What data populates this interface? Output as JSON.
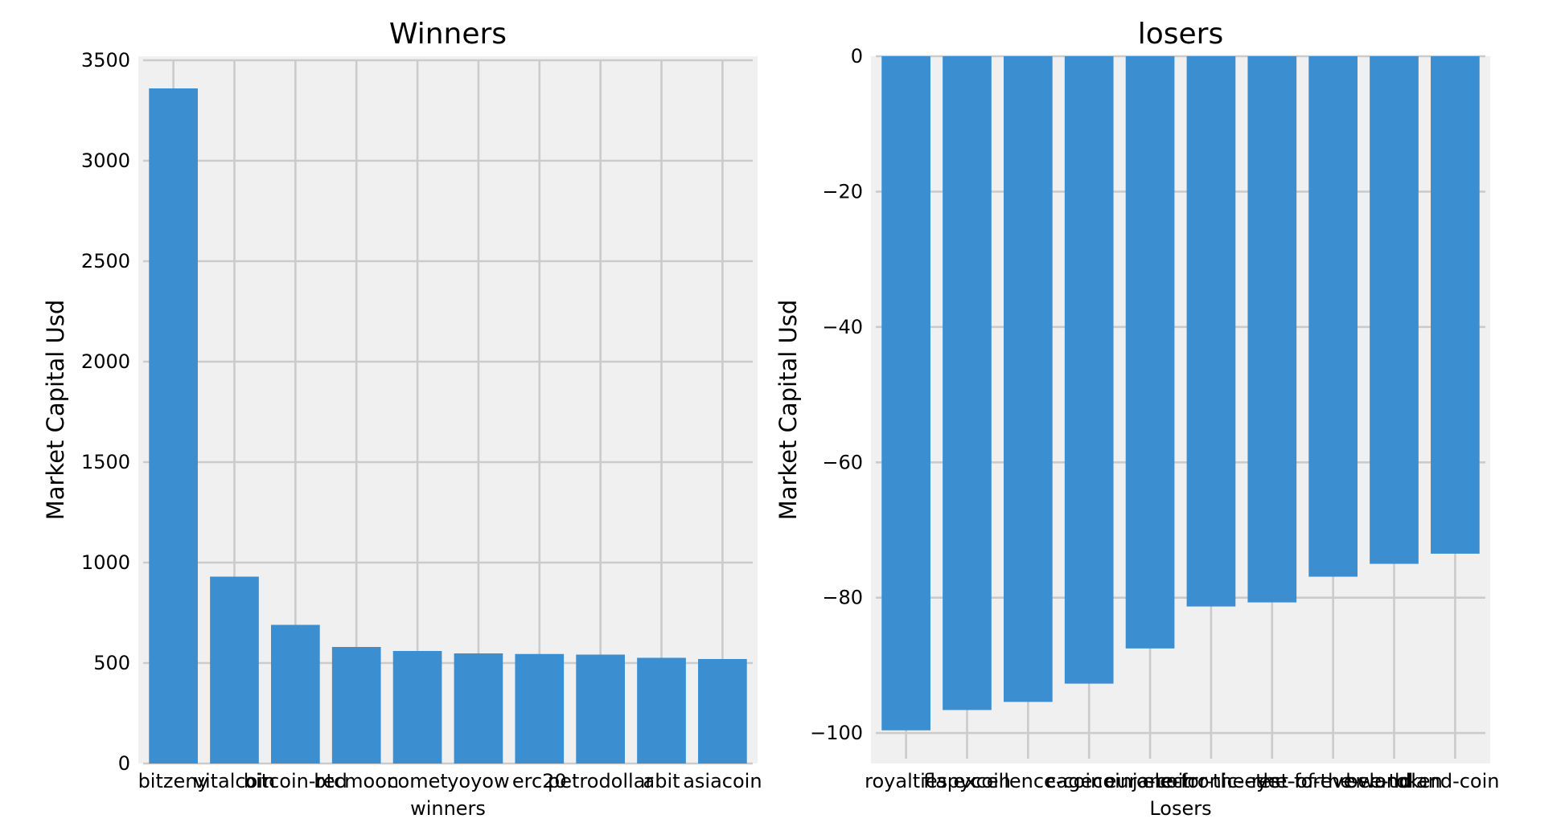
{
  "colors": {
    "bar": "#3b8ed0",
    "axes_bg": "#f0f0f0",
    "grid": "#cbcbcb",
    "figure_bg": "#ffffff"
  },
  "chart_data": [
    {
      "type": "bar",
      "title": "Winners",
      "xlabel": "winners",
      "ylabel": "Market Capital Usd",
      "ylim": [
        0,
        3520
      ],
      "yticks": [
        0,
        500,
        1000,
        1500,
        2000,
        2500,
        3000,
        3500
      ],
      "ytick_labels": [
        "0",
        "500",
        "1000",
        "1500",
        "2000",
        "2500",
        "3000",
        "3500"
      ],
      "grid": true,
      "categories": [
        "bitzeny",
        "vitalcoin",
        "bitcoin-red",
        "btcmoon",
        "comet",
        "yoyow",
        "erc20",
        "petrodollar",
        "abit",
        "asiacoin"
      ],
      "values": [
        3360,
        930,
        690,
        580,
        560,
        548,
        545,
        542,
        526,
        520
      ]
    },
    {
      "type": "bar",
      "title": "losers",
      "xlabel": "Losers",
      "ylabel": "Market Capital Usd",
      "ylim": [
        -104.5,
        0
      ],
      "yticks": [
        -100,
        -80,
        -60,
        -40,
        -20,
        0
      ],
      "ytick_labels": [
        "−100",
        "−80",
        "−60",
        "−40",
        "−20",
        "0"
      ],
      "grid": true,
      "categories": [
        "royalties",
        "flapycoin",
        "excellence-coin",
        "cagecoin",
        "euro-coin",
        "electronic-eye",
        "jane-for-the-rest-of-the-world",
        "the-forever-land",
        "bee-token",
        "land-coin"
      ],
      "values": [
        -99.6,
        -96.6,
        -95.4,
        -92.7,
        -87.5,
        -81.3,
        -80.7,
        -76.9,
        -75.0,
        -73.5
      ]
    }
  ]
}
